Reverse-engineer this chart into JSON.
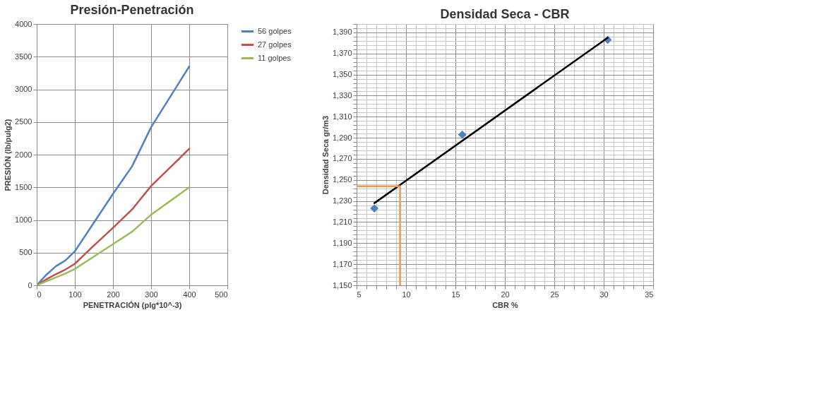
{
  "chart_data": [
    {
      "type": "line",
      "title": "Presión-Penetración",
      "xlabel": "PENETRACIÓN (plg*10^-3)",
      "ylabel": "PRESIÓN (lb/pulg2)",
      "x": [
        0,
        25,
        50,
        75,
        100,
        150,
        200,
        250,
        300,
        400
      ],
      "series": [
        {
          "name": "56 golpes",
          "color": "#4f81bd",
          "values": [
            0,
            160,
            290,
            380,
            520,
            960,
            1400,
            1820,
            2420,
            3350
          ]
        },
        {
          "name": "27 golpes",
          "color": "#c0504d",
          "values": [
            0,
            90,
            170,
            240,
            330,
            610,
            880,
            1160,
            1520,
            2090
          ]
        },
        {
          "name": "11 golpes",
          "color": "#9bbb59",
          "values": [
            0,
            60,
            120,
            180,
            250,
            440,
            630,
            820,
            1080,
            1500
          ]
        }
      ],
      "xlim": [
        0,
        500
      ],
      "xticks": [
        0,
        100,
        200,
        300,
        400,
        500
      ],
      "ylim": [
        0,
        4000
      ],
      "yticks": [
        0,
        500,
        1000,
        1500,
        2000,
        2500,
        3000,
        3500,
        4000
      ],
      "grid": true,
      "legend": "right"
    },
    {
      "type": "scatter",
      "title": "Densidad Seca - CBR",
      "xlabel": "CBR %",
      "ylabel": "Densidad Seca gr/m3",
      "series": [
        {
          "type": "scatter",
          "color": "#4f81bd",
          "marker": "diamond",
          "x": [
            6.8,
            15.7,
            30.4
          ],
          "values": [
            1223,
            1293,
            1383
          ]
        },
        {
          "type": "line",
          "color": "#000000",
          "x": [
            6.8,
            30.4
          ],
          "values": [
            1228,
            1385
          ]
        },
        {
          "type": "line",
          "color": "#f79646",
          "x": [
            5,
            9.4,
            9.4
          ],
          "values": [
            1244,
            1244,
            1150
          ]
        }
      ],
      "xlim": [
        5,
        35
      ],
      "xticks": [
        5,
        {
          "value": 6,
          "label": null
        },
        {
          "value": 7,
          "label": null
        },
        {
          "value": 8,
          "label": null
        },
        {
          "value": 9,
          "label": null
        },
        10,
        {
          "value": 11,
          "label": null
        },
        {
          "value": 12,
          "label": null
        },
        {
          "value": 13,
          "label": null
        },
        {
          "value": 14,
          "label": null
        },
        15,
        {
          "value": 16,
          "label": null
        },
        {
          "value": 17,
          "label": null
        },
        {
          "value": 18,
          "label": null
        },
        {
          "value": 19,
          "label": null
        },
        20,
        {
          "value": 21,
          "label": null
        },
        {
          "value": 22,
          "label": null
        },
        {
          "value": 23,
          "label": null
        },
        {
          "value": 24,
          "label": null
        },
        25,
        {
          "value": 26,
          "label": null
        },
        {
          "value": 27,
          "label": null
        },
        {
          "value": 28,
          "label": null
        },
        {
          "value": 29,
          "label": null
        },
        30,
        {
          "value": 31,
          "label": null
        },
        {
          "value": 32,
          "label": null
        },
        {
          "value": 33,
          "label": null
        },
        {
          "value": 34,
          "label": null
        },
        35
      ],
      "ylim": [
        1150,
        1398
      ],
      "yticks": [
        {
          "value": 1150,
          "label": "1,150"
        },
        {
          "value": 1154,
          "label": null
        },
        {
          "value": 1158,
          "label": null
        },
        {
          "value": 1162,
          "label": null
        },
        {
          "value": 1166,
          "label": null
        },
        {
          "value": 1170,
          "label": "1,170"
        },
        {
          "value": 1174,
          "label": null
        },
        {
          "value": 1178,
          "label": null
        },
        {
          "value": 1182,
          "label": null
        },
        {
          "value": 1186,
          "label": null
        },
        {
          "value": 1190,
          "label": "1,190"
        },
        {
          "value": 1194,
          "label": null
        },
        {
          "value": 1198,
          "label": null
        },
        {
          "value": 1202,
          "label": null
        },
        {
          "value": 1206,
          "label": null
        },
        {
          "value": 1210,
          "label": "1,210"
        },
        {
          "value": 1214,
          "label": null
        },
        {
          "value": 1218,
          "label": null
        },
        {
          "value": 1222,
          "label": null
        },
        {
          "value": 1226,
          "label": null
        },
        {
          "value": 1230,
          "label": "1,230"
        },
        {
          "value": 1234,
          "label": null
        },
        {
          "value": 1238,
          "label": null
        },
        {
          "value": 1242,
          "label": null
        },
        {
          "value": 1246,
          "label": null
        },
        {
          "value": 1250,
          "label": "1,250"
        },
        {
          "value": 1254,
          "label": null
        },
        {
          "value": 1258,
          "label": null
        },
        {
          "value": 1262,
          "label": null
        },
        {
          "value": 1266,
          "label": null
        },
        {
          "value": 1270,
          "label": "1,270"
        },
        {
          "value": 1274,
          "label": null
        },
        {
          "value": 1278,
          "label": null
        },
        {
          "value": 1282,
          "label": null
        },
        {
          "value": 1286,
          "label": null
        },
        {
          "value": 1290,
          "label": "1,290"
        },
        {
          "value": 1294,
          "label": null
        },
        {
          "value": 1298,
          "label": null
        },
        {
          "value": 1302,
          "label": null
        },
        {
          "value": 1306,
          "label": null
        },
        {
          "value": 1310,
          "label": "1,310"
        },
        {
          "value": 1314,
          "label": null
        },
        {
          "value": 1318,
          "label": null
        },
        {
          "value": 1322,
          "label": null
        },
        {
          "value": 1326,
          "label": null
        },
        {
          "value": 1330,
          "label": "1,330"
        },
        {
          "value": 1334,
          "label": null
        },
        {
          "value": 1338,
          "label": null
        },
        {
          "value": 1342,
          "label": null
        },
        {
          "value": 1346,
          "label": null
        },
        {
          "value": 1350,
          "label": "1,350"
        },
        {
          "value": 1354,
          "label": null
        },
        {
          "value": 1358,
          "label": null
        },
        {
          "value": 1362,
          "label": null
        },
        {
          "value": 1366,
          "label": null
        },
        {
          "value": 1370,
          "label": "1,370"
        },
        {
          "value": 1374,
          "label": null
        },
        {
          "value": 1378,
          "label": null
        },
        {
          "value": 1382,
          "label": null
        },
        {
          "value": 1386,
          "label": null
        },
        {
          "value": 1390,
          "label": "1,390"
        },
        {
          "value": 1394,
          "label": null
        },
        {
          "value": 1398,
          "label": null
        }
      ],
      "grid": true
    }
  ]
}
